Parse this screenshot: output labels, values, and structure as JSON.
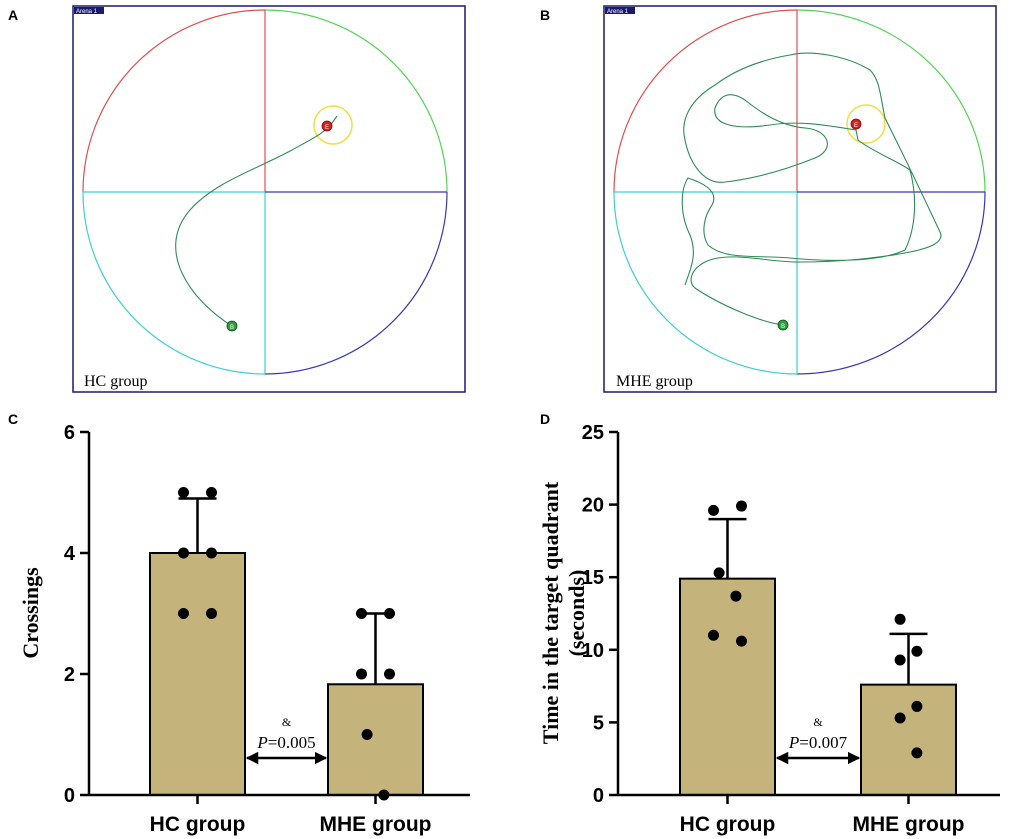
{
  "panels": {
    "A": {
      "letter": "A",
      "arena_label": "Arena 1",
      "group_label": "HC group",
      "start_marker": "B",
      "end_marker": "E"
    },
    "B": {
      "letter": "B",
      "arena_label": "Arena 1",
      "group_label": "MHE group",
      "start_marker": "B",
      "end_marker": "E"
    }
  },
  "colors": {
    "bar_fill": "#c4b47c",
    "quadrant_ne": "#54d454",
    "quadrant_nw": "#e05050",
    "quadrant_sw": "#40d0d0",
    "quadrant_se": "#3838b0",
    "track": "#2e8b57",
    "platform": "#f0e040",
    "frame": "#1a1a6e"
  },
  "chart_data": [
    {
      "panel": "C",
      "type": "bar",
      "ylabel": "Crossings",
      "ylim": [
        0,
        6
      ],
      "yticks": [
        0,
        2,
        4,
        6
      ],
      "categories": [
        "HC group",
        "MHE group"
      ],
      "values": [
        4.0,
        1.83
      ],
      "errors": [
        0.9,
        1.17
      ],
      "points": [
        [
          5,
          5,
          4,
          4,
          3,
          3
        ],
        [
          3,
          3,
          2,
          2,
          1,
          0
        ]
      ],
      "annotation": {
        "symbol": "&",
        "p_label": "P",
        "p_value": "=0.005"
      }
    },
    {
      "panel": "D",
      "type": "bar",
      "ylabel": "Time in the target quadrant",
      "ylabel2": "(seconds)",
      "ylim": [
        0,
        25
      ],
      "yticks": [
        0,
        5,
        10,
        15,
        20,
        25
      ],
      "categories": [
        "HC group",
        "MHE group"
      ],
      "values": [
        14.9,
        7.6
      ],
      "errors": [
        4.1,
        3.5
      ],
      "points": [
        [
          19.6,
          19.9,
          15.3,
          13.7,
          11.0,
          10.6
        ],
        [
          12.1,
          9.9,
          9.3,
          6.1,
          5.3,
          2.9
        ]
      ],
      "annotation": {
        "symbol": "&",
        "p_label": "P",
        "p_value": "=0.007"
      }
    }
  ]
}
